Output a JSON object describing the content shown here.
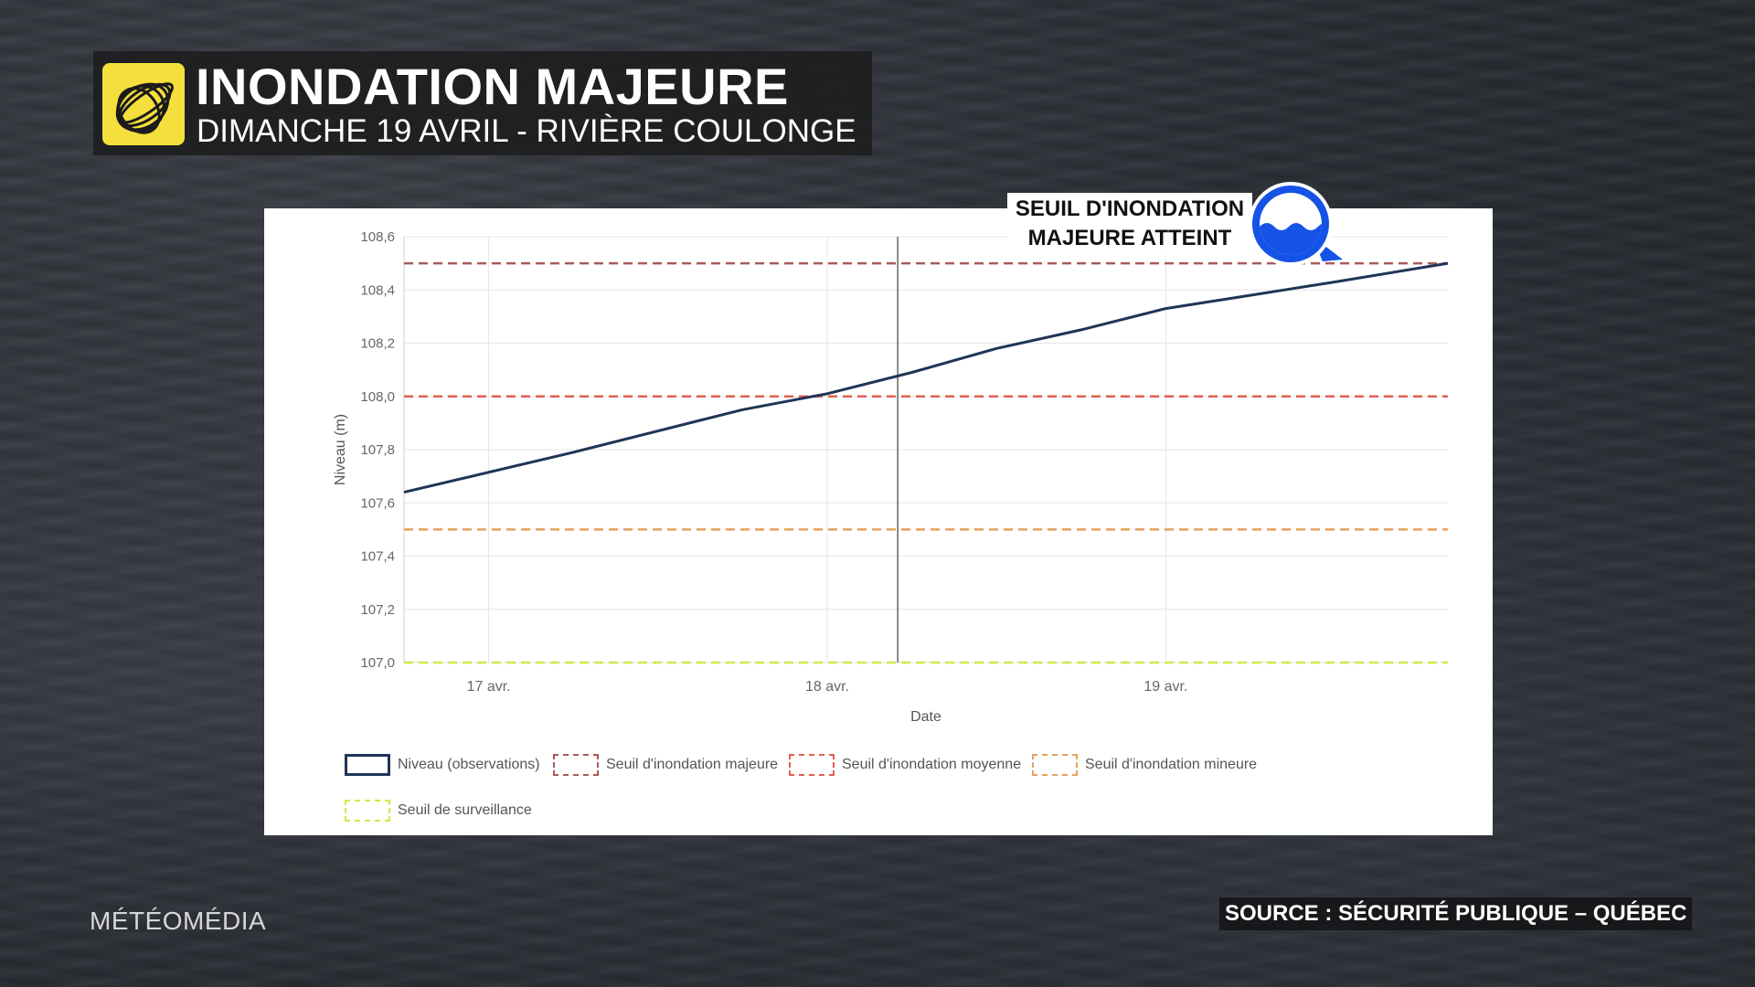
{
  "header": {
    "title": "INONDATION MAJEURE",
    "subtitle": "DIMANCHE 19 AVRIL - RIVIÈRE COULONGE",
    "logo_color": "#f4df3c"
  },
  "callout": {
    "line1": "SEUIL D'INONDATION",
    "line2": "MAJEURE ATTEINT",
    "icon": "flood-water-icon",
    "icon_color": "#1552e6"
  },
  "footer": {
    "brand": "MÉTÉOMÉDIA",
    "source": "SOURCE : SÉCURITÉ PUBLIQUE – QUÉBEC"
  },
  "chart_data": {
    "type": "line",
    "xlabel": "Date",
    "ylabel": "Niveau (m)",
    "ylim": [
      107.0,
      108.6
    ],
    "xlim": [
      "2020-04-16 18:00",
      "2020-04-19 20:00"
    ],
    "yticks": [
      "107,0",
      "107,2",
      "107,4",
      "107,6",
      "107,8",
      "108,0",
      "108,2",
      "108,4",
      "108,6"
    ],
    "xticks": [
      {
        "label": "17 avr.",
        "date": "2020-04-17 00:00"
      },
      {
        "label": "18 avr.",
        "date": "2020-04-18 00:00"
      },
      {
        "label": "19 avr.",
        "date": "2020-04-19 00:00"
      }
    ],
    "marker_line_date": "2020-04-18 05:00",
    "grid": true,
    "legend_position": "bottom",
    "series": [
      {
        "name": "Niveau (observations)",
        "color": "#1f3556",
        "style": "solid",
        "x": [
          "2020-04-16 18:00",
          "2020-04-17 06:00",
          "2020-04-17 18:00",
          "2020-04-18 00:00",
          "2020-04-18 06:00",
          "2020-04-18 12:00",
          "2020-04-18 18:00",
          "2020-04-19 00:00",
          "2020-04-19 06:00",
          "2020-04-19 12:00",
          "2020-04-19 20:00"
        ],
        "y": [
          107.64,
          107.79,
          107.95,
          108.01,
          108.09,
          108.18,
          108.25,
          108.33,
          108.38,
          108.43,
          108.5
        ]
      },
      {
        "name": "Seuil d'inondation majeure",
        "color": "#a85a5a",
        "style": "dashed",
        "value": 108.5
      },
      {
        "name": "Seuil d'inondation moyenne",
        "color": "#e0604f",
        "style": "dashed",
        "value": 108.0
      },
      {
        "name": "Seuil d'inondation mineure",
        "color": "#e8a15a",
        "style": "dashed",
        "value": 107.5
      },
      {
        "name": "Seuil de surveillance",
        "color": "#d6e64a",
        "style": "dashed",
        "value": 107.0
      }
    ]
  }
}
